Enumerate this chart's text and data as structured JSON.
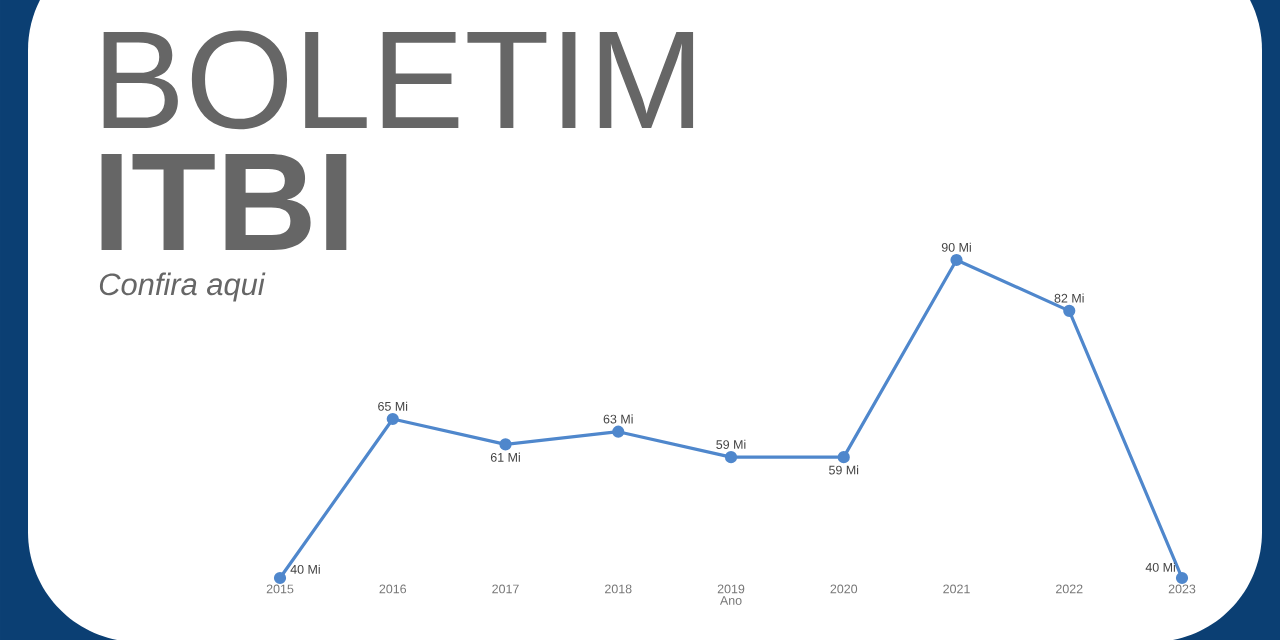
{
  "chart_data": {
    "type": "line",
    "title": "BOLETIM",
    "subtitle": "ITBI",
    "annotations": [
      "Confira aqui"
    ],
    "xlabel": "Ano",
    "categories": [
      "2015",
      "2016",
      "2017",
      "2018",
      "2019",
      "2020",
      "2021",
      "2022",
      "2023"
    ],
    "series": [
      {
        "color": "#4f87cc",
        "values": [
          40,
          65,
          61,
          63,
          59,
          59,
          90,
          82,
          40
        ],
        "value_labels": [
          "40 Mi",
          "65 Mi",
          "61 Mi",
          "63 Mi",
          "59 Mi",
          "59 Mi",
          "90 Mi",
          "82 Mi",
          "40 Mi"
        ]
      }
    ],
    "marker": "circle",
    "line_style": "solid"
  }
}
